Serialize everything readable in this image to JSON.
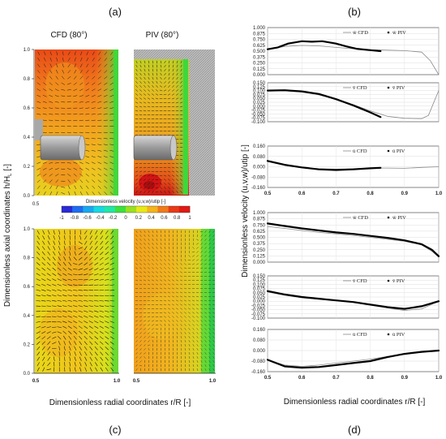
{
  "panel_labels": {
    "a": "(a)",
    "b": "(b)",
    "c": "(c)",
    "d": "(d)"
  },
  "left": {
    "cfd_title": "CFD (80°)",
    "piv_title": "PIV (80°)",
    "y_axis_label": "Dimensionless axial coordinates h/H",
    "y_axis_sub": "L",
    "y_axis_suffix": " [-]",
    "x_axis_label": "Dimensionless radial coordinates r/R [-]",
    "colorbar_title": "Dimensionless velocity (u,v,w)/utip [-]",
    "colorbar_ticks": [
      "-1",
      "-0.8",
      "-0.6",
      "-0.4",
      "-0.2",
      "0",
      "0.2",
      "0.4",
      "0.6",
      "0.8",
      "1"
    ],
    "colorbar_colors": [
      "#2a2ad8",
      "#1e6cf0",
      "#19a8f0",
      "#17d8e0",
      "#22e6a6",
      "#3ce03c",
      "#9ae020",
      "#e8e818",
      "#f4b41a",
      "#f07a1a",
      "#e83a16",
      "#e01a14"
    ],
    "top_y_ticks": [
      "1.0",
      "0.8",
      "0.6",
      "0.4",
      "0.2",
      "0.0"
    ],
    "bottom_y_ticks": [
      "1.0",
      "0.8",
      "0.6",
      "0.4",
      "0.2",
      "0.0"
    ],
    "top_x_tick": "0.5",
    "bottom_x_ticks_cfd": [
      "0.5",
      "1.0"
    ],
    "bottom_x_ticks_piv": [
      "0.5",
      "1.0"
    ]
  },
  "right": {
    "y_axis_label": "Dimensionless velocity (u,v,w)/utip [-]",
    "x_axis_label": "Dimensionless radial coordinates r/R [-]",
    "x_ticks": [
      "0.5",
      "0.6",
      "0.7",
      "0.8",
      "0.9",
      "1.0"
    ]
  },
  "chart_data": [
    {
      "type": "line",
      "panel": "b",
      "component": "w",
      "legend": [
        "w̄ CFD",
        "w̄ PIV"
      ],
      "y_ticks": [
        "1.000",
        "0.875",
        "0.750",
        "0.625",
        "0.500",
        "0.375",
        "0.250",
        "0.125",
        "0.000"
      ],
      "ylim": [
        0.0,
        1.0
      ],
      "xlim": [
        0.5,
        1.0
      ],
      "series": [
        {
          "name": "CFD",
          "x": [
            0.5,
            0.55,
            0.6,
            0.65,
            0.7,
            0.75,
            0.8,
            0.85,
            0.9,
            0.95,
            0.975,
            1.0
          ],
          "y": [
            0.53,
            0.6,
            0.62,
            0.61,
            0.58,
            0.55,
            0.53,
            0.52,
            0.51,
            0.48,
            0.3,
            0.0
          ]
        },
        {
          "name": "PIV",
          "x": [
            0.5,
            0.53,
            0.56,
            0.6,
            0.63,
            0.66,
            0.7,
            0.73,
            0.76,
            0.8,
            0.83
          ],
          "y": [
            0.54,
            0.58,
            0.66,
            0.71,
            0.7,
            0.71,
            0.66,
            0.6,
            0.55,
            0.52,
            0.5
          ]
        }
      ]
    },
    {
      "type": "line",
      "panel": "b",
      "component": "v",
      "legend": [
        "v̄ CFD",
        "v̄ PIV"
      ],
      "y_ticks": [
        "0.150",
        "0.125",
        "0.100",
        "0.075",
        "0.050",
        "0.025",
        "0.000",
        "-0.025",
        "-0.050",
        "-0.075",
        "-0.100"
      ],
      "ylim": [
        -0.1,
        0.15
      ],
      "xlim": [
        0.5,
        1.0
      ],
      "series": [
        {
          "name": "CFD",
          "x": [
            0.5,
            0.55,
            0.6,
            0.65,
            0.7,
            0.75,
            0.8,
            0.85,
            0.9,
            0.95,
            0.97,
            1.0
          ],
          "y": [
            0.098,
            0.098,
            0.09,
            0.072,
            0.045,
            0.01,
            -0.03,
            -0.065,
            -0.078,
            -0.08,
            -0.06,
            0.1
          ]
        },
        {
          "name": "PIV",
          "x": [
            0.5,
            0.55,
            0.6,
            0.65,
            0.7,
            0.75,
            0.8,
            0.83
          ],
          "y": [
            0.1,
            0.102,
            0.095,
            0.078,
            0.045,
            0.005,
            -0.04,
            -0.07
          ]
        }
      ]
    },
    {
      "type": "line",
      "panel": "b",
      "component": "u",
      "legend": [
        "ū CFD",
        "ū PIV"
      ],
      "y_ticks": [
        "0.160",
        "0.080",
        "0.000",
        "-0.080",
        "-0.160"
      ],
      "ylim": [
        -0.16,
        0.16
      ],
      "xlim": [
        0.5,
        1.0
      ],
      "series": [
        {
          "name": "CFD",
          "x": [
            0.5,
            0.55,
            0.6,
            0.65,
            0.7,
            0.75,
            0.8,
            0.85,
            0.9,
            0.95,
            1.0
          ],
          "y": [
            0.04,
            0.01,
            -0.008,
            -0.015,
            -0.018,
            -0.015,
            -0.01,
            -0.01,
            -0.012,
            -0.005,
            0.0
          ]
        },
        {
          "name": "PIV",
          "x": [
            0.5,
            0.55,
            0.6,
            0.65,
            0.7,
            0.75,
            0.8,
            0.83
          ],
          "y": [
            0.045,
            0.015,
            -0.005,
            -0.02,
            -0.025,
            -0.02,
            -0.012,
            -0.008
          ]
        }
      ]
    },
    {
      "type": "line",
      "panel": "d",
      "component": "w",
      "legend": [
        "w̄ CFD",
        "w̄ PIV"
      ],
      "y_ticks": [
        "1.000",
        "0.875",
        "0.750",
        "0.625",
        "0.500",
        "0.375",
        "0.250",
        "0.125",
        "0.000"
      ],
      "ylim": [
        0.0,
        1.0
      ],
      "xlim": [
        0.5,
        1.0
      ],
      "series": [
        {
          "name": "CFD",
          "x": [
            0.5,
            0.55,
            0.6,
            0.65,
            0.7,
            0.75,
            0.8,
            0.85,
            0.9,
            0.95,
            0.98,
            1.0
          ],
          "y": [
            0.72,
            0.68,
            0.64,
            0.6,
            0.57,
            0.54,
            0.5,
            0.46,
            0.42,
            0.35,
            0.22,
            0.1
          ]
        },
        {
          "name": "PIV",
          "x": [
            0.5,
            0.55,
            0.6,
            0.65,
            0.7,
            0.75,
            0.8,
            0.85,
            0.9,
            0.95,
            0.98,
            1.0
          ],
          "y": [
            0.78,
            0.73,
            0.68,
            0.64,
            0.6,
            0.57,
            0.53,
            0.49,
            0.44,
            0.36,
            0.25,
            0.12
          ]
        }
      ]
    },
    {
      "type": "line",
      "panel": "d",
      "component": "v",
      "legend": [
        "v̄ CFD",
        "v̄ PIV"
      ],
      "y_ticks": [
        "0.150",
        "0.125",
        "0.100",
        "0.075",
        "0.050",
        "0.025",
        "0.000",
        "-0.025",
        "-0.050",
        "-0.075",
        "-0.100"
      ],
      "ylim": [
        -0.1,
        0.15
      ],
      "xlim": [
        0.5,
        1.0
      ],
      "series": [
        {
          "name": "CFD",
          "x": [
            0.5,
            0.55,
            0.6,
            0.65,
            0.7,
            0.75,
            0.8,
            0.85,
            0.9,
            0.95,
            1.0
          ],
          "y": [
            0.055,
            0.035,
            0.02,
            0.012,
            0.005,
            -0.005,
            -0.02,
            -0.04,
            -0.055,
            -0.045,
            0.0
          ]
        },
        {
          "name": "PIV",
          "x": [
            0.5,
            0.55,
            0.6,
            0.65,
            0.7,
            0.75,
            0.8,
            0.85,
            0.9,
            0.95,
            1.0
          ],
          "y": [
            0.06,
            0.04,
            0.025,
            0.015,
            0.005,
            -0.005,
            -0.02,
            -0.035,
            -0.045,
            -0.03,
            0.0
          ]
        }
      ]
    },
    {
      "type": "line",
      "panel": "d",
      "component": "u",
      "legend": [
        "ū CFD",
        "ū PIV"
      ],
      "y_ticks": [
        "0.160",
        "0.080",
        "0.000",
        "-0.080",
        "-0.160"
      ],
      "ylim": [
        -0.16,
        0.16
      ],
      "xlim": [
        0.5,
        1.0
      ],
      "series": [
        {
          "name": "CFD",
          "x": [
            0.5,
            0.55,
            0.6,
            0.65,
            0.7,
            0.75,
            0.8,
            0.85,
            0.9,
            0.95,
            1.0
          ],
          "y": [
            -0.07,
            -0.11,
            -0.12,
            -0.11,
            -0.095,
            -0.08,
            -0.065,
            -0.045,
            -0.025,
            -0.01,
            0.0
          ]
        },
        {
          "name": "PIV",
          "x": [
            0.5,
            0.55,
            0.6,
            0.65,
            0.7,
            0.75,
            0.8,
            0.85,
            0.9,
            0.95,
            1.0
          ],
          "y": [
            -0.07,
            -0.12,
            -0.13,
            -0.125,
            -0.11,
            -0.095,
            -0.08,
            -0.05,
            -0.025,
            -0.01,
            0.0
          ]
        }
      ]
    }
  ]
}
